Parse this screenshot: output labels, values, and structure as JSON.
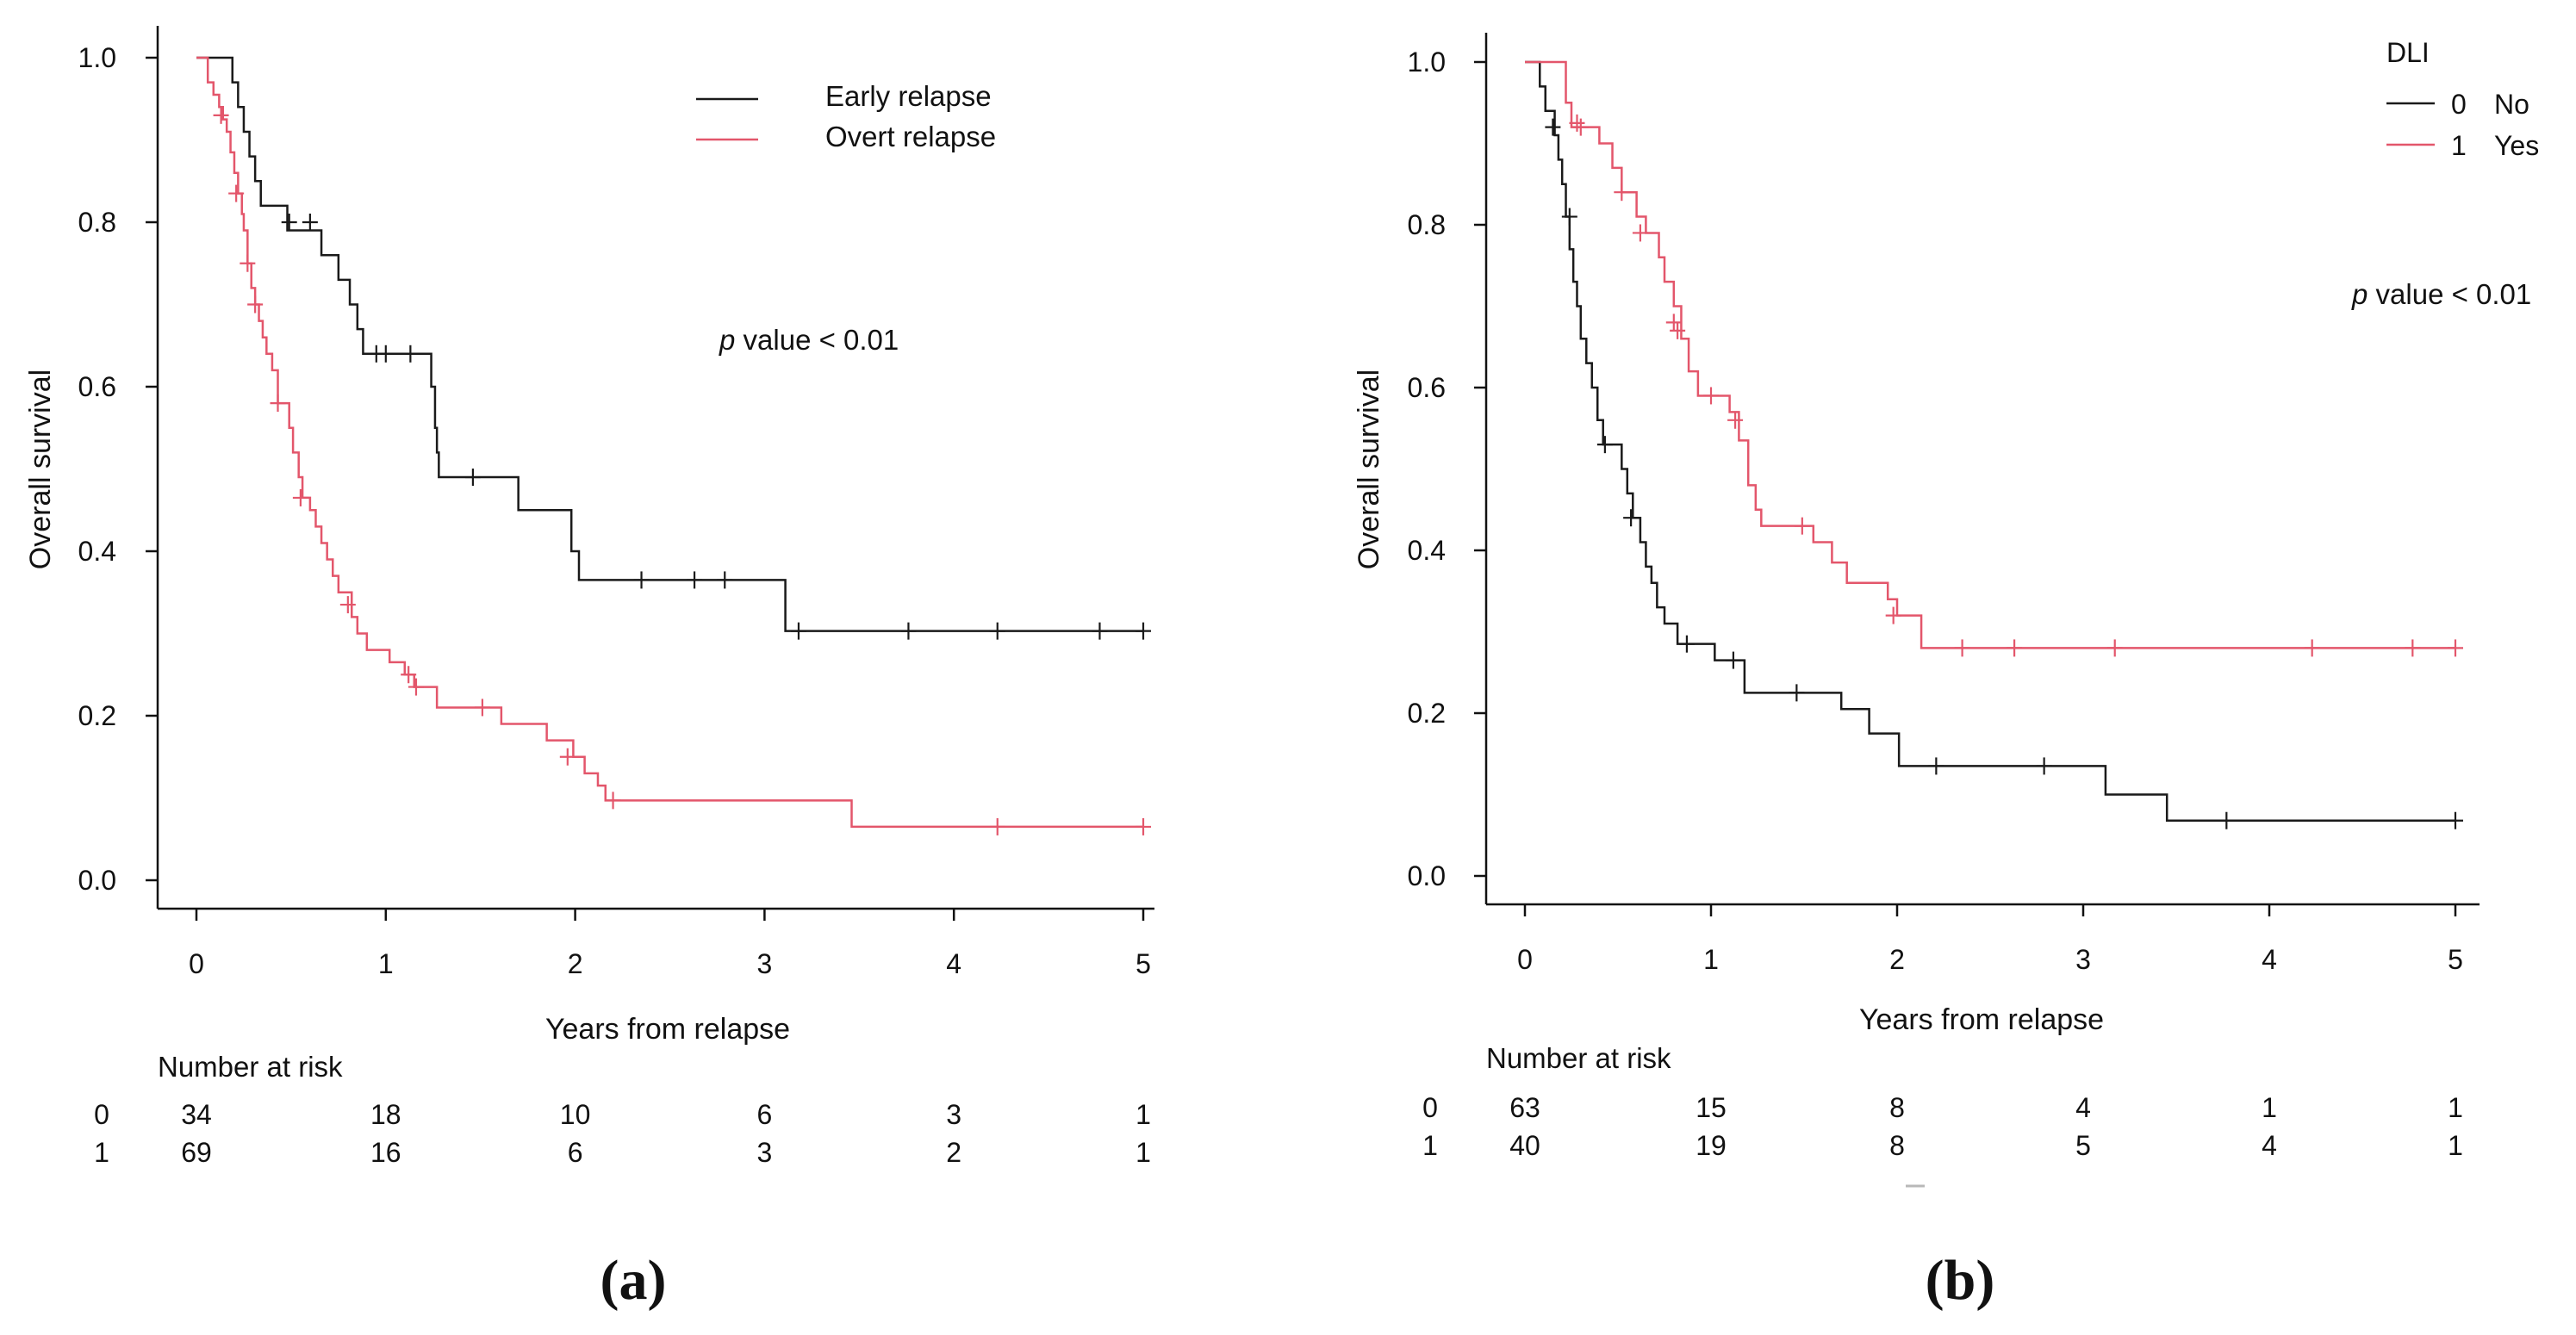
{
  "chart_data": [
    {
      "type": "line",
      "subtype": "kaplan-meier",
      "panel_label": "(a)",
      "xlabel": "Years from relapse",
      "ylabel": "Overall survival",
      "xlim": [
        0,
        5
      ],
      "ylim": [
        0,
        1
      ],
      "x_ticks": [
        "0",
        "1",
        "2",
        "3",
        "4",
        "5"
      ],
      "y_ticks": [
        "0.0",
        "0.2",
        "0.4",
        "0.6",
        "0.8",
        "1.0"
      ],
      "legend_position": "top-right",
      "annotation_italic": "p",
      "annotation_rest": " value < 0.01",
      "series": [
        {
          "name": "Early relapse",
          "color": "#1a1a1a",
          "steps": [
            [
              0,
              1.0
            ],
            [
              0.19,
              0.97
            ],
            [
              0.22,
              0.94
            ],
            [
              0.25,
              0.91
            ],
            [
              0.28,
              0.88
            ],
            [
              0.31,
              0.85
            ],
            [
              0.34,
              0.82
            ],
            [
              0.48,
              0.79
            ],
            [
              0.66,
              0.76
            ],
            [
              0.75,
              0.73
            ],
            [
              0.81,
              0.7
            ],
            [
              0.85,
              0.67
            ],
            [
              0.88,
              0.64
            ],
            [
              1.24,
              0.6
            ],
            [
              1.26,
              0.55
            ],
            [
              1.27,
              0.52
            ],
            [
              1.28,
              0.49
            ],
            [
              1.7,
              0.45
            ],
            [
              1.98,
              0.4
            ],
            [
              2.02,
              0.365
            ],
            [
              3.11,
              0.303
            ],
            [
              5.0,
              0.303
            ]
          ],
          "censors": [
            [
              0.49,
              0.8
            ],
            [
              0.6,
              0.8
            ],
            [
              0.95,
              0.64
            ],
            [
              1.0,
              0.64
            ],
            [
              1.13,
              0.64
            ],
            [
              1.46,
              0.49
            ],
            [
              2.35,
              0.365
            ],
            [
              2.63,
              0.365
            ],
            [
              2.79,
              0.365
            ],
            [
              3.18,
              0.303
            ],
            [
              3.76,
              0.303
            ],
            [
              4.23,
              0.303
            ],
            [
              4.77,
              0.303
            ],
            [
              5.0,
              0.303
            ]
          ]
        },
        {
          "name": "Overt relapse",
          "color": "#e3566b",
          "steps": [
            [
              0,
              1.0
            ],
            [
              0.06,
              0.97
            ],
            [
              0.09,
              0.955
            ],
            [
              0.12,
              0.94
            ],
            [
              0.14,
              0.925
            ],
            [
              0.16,
              0.91
            ],
            [
              0.18,
              0.885
            ],
            [
              0.2,
              0.86
            ],
            [
              0.22,
              0.835
            ],
            [
              0.24,
              0.81
            ],
            [
              0.25,
              0.79
            ],
            [
              0.27,
              0.75
            ],
            [
              0.29,
              0.72
            ],
            [
              0.31,
              0.7
            ],
            [
              0.33,
              0.68
            ],
            [
              0.35,
              0.66
            ],
            [
              0.37,
              0.64
            ],
            [
              0.4,
              0.62
            ],
            [
              0.43,
              0.58
            ],
            [
              0.49,
              0.55
            ],
            [
              0.51,
              0.52
            ],
            [
              0.54,
              0.49
            ],
            [
              0.56,
              0.465
            ],
            [
              0.6,
              0.45
            ],
            [
              0.63,
              0.43
            ],
            [
              0.66,
              0.41
            ],
            [
              0.69,
              0.39
            ],
            [
              0.72,
              0.37
            ],
            [
              0.75,
              0.35
            ],
            [
              0.82,
              0.32
            ],
            [
              0.85,
              0.3
            ],
            [
              0.9,
              0.28
            ],
            [
              1.02,
              0.265
            ],
            [
              1.1,
              0.25
            ],
            [
              1.15,
              0.235
            ],
            [
              1.27,
              0.21
            ],
            [
              1.61,
              0.19
            ],
            [
              1.85,
              0.17
            ],
            [
              1.99,
              0.15
            ],
            [
              2.05,
              0.13
            ],
            [
              2.12,
              0.115
            ],
            [
              2.16,
              0.097
            ],
            [
              3.46,
              0.065
            ],
            [
              5.0,
              0.065
            ]
          ],
          "censors": [
            [
              0.13,
              0.93
            ],
            [
              0.21,
              0.835
            ],
            [
              0.27,
              0.75
            ],
            [
              0.31,
              0.7
            ],
            [
              0.43,
              0.58
            ],
            [
              0.55,
              0.465
            ],
            [
              0.8,
              0.335
            ],
            [
              1.12,
              0.25
            ],
            [
              1.16,
              0.235
            ],
            [
              1.51,
              0.21
            ],
            [
              1.96,
              0.15
            ],
            [
              2.2,
              0.097
            ],
            [
              4.23,
              0.065
            ],
            [
              5.0,
              0.065
            ]
          ]
        }
      ],
      "risk_table": {
        "title": "Number at risk",
        "row_labels": [
          "0",
          "1"
        ],
        "rows": [
          [
            "34",
            "18",
            "10",
            "6",
            "3",
            "1"
          ],
          [
            "69",
            "16",
            "6",
            "3",
            "2",
            "1"
          ]
        ]
      }
    },
    {
      "type": "line",
      "subtype": "kaplan-meier",
      "panel_label": "(b)",
      "xlabel": "Years from relapse",
      "ylabel": "Overall survival",
      "xlim": [
        0,
        5
      ],
      "ylim": [
        0,
        1
      ],
      "x_ticks": [
        "0",
        "1",
        "2",
        "3",
        "4",
        "5"
      ],
      "y_ticks": [
        "0.0",
        "0.2",
        "0.4",
        "0.6",
        "0.8",
        "1.0"
      ],
      "legend_title": "DLI",
      "legend_position": "top-right",
      "annotation_italic": "p",
      "annotation_rest": " value < 0.01",
      "series": [
        {
          "name": "No",
          "legend_code": "0",
          "color": "#1a1a1a",
          "steps": [
            [
              0,
              1.0
            ],
            [
              0.08,
              0.97
            ],
            [
              0.11,
              0.94
            ],
            [
              0.16,
              0.91
            ],
            [
              0.18,
              0.88
            ],
            [
              0.2,
              0.85
            ],
            [
              0.22,
              0.81
            ],
            [
              0.24,
              0.77
            ],
            [
              0.26,
              0.73
            ],
            [
              0.28,
              0.7
            ],
            [
              0.3,
              0.66
            ],
            [
              0.33,
              0.63
            ],
            [
              0.36,
              0.6
            ],
            [
              0.39,
              0.56
            ],
            [
              0.42,
              0.53
            ],
            [
              0.52,
              0.5
            ],
            [
              0.55,
              0.47
            ],
            [
              0.58,
              0.44
            ],
            [
              0.62,
              0.41
            ],
            [
              0.65,
              0.38
            ],
            [
              0.68,
              0.36
            ],
            [
              0.71,
              0.33
            ],
            [
              0.75,
              0.31
            ],
            [
              0.82,
              0.285
            ],
            [
              1.02,
              0.265
            ],
            [
              1.18,
              0.225
            ],
            [
              1.7,
              0.205
            ],
            [
              1.85,
              0.175
            ],
            [
              2.01,
              0.135
            ],
            [
              3.12,
              0.1
            ],
            [
              3.45,
              0.068
            ],
            [
              5.0,
              0.068
            ]
          ],
          "censors": [
            [
              0.15,
              0.92
            ],
            [
              0.24,
              0.81
            ],
            [
              0.43,
              0.53
            ],
            [
              0.57,
              0.44
            ],
            [
              0.87,
              0.285
            ],
            [
              1.12,
              0.265
            ],
            [
              1.46,
              0.225
            ],
            [
              2.21,
              0.135
            ],
            [
              2.79,
              0.135
            ],
            [
              3.77,
              0.068
            ],
            [
              5.0,
              0.068
            ]
          ]
        },
        {
          "name": "Yes",
          "legend_code": "1",
          "color": "#e3566b",
          "steps": [
            [
              0,
              1.0
            ],
            [
              0.22,
              0.95
            ],
            [
              0.25,
              0.92
            ],
            [
              0.4,
              0.9
            ],
            [
              0.47,
              0.87
            ],
            [
              0.52,
              0.84
            ],
            [
              0.6,
              0.81
            ],
            [
              0.65,
              0.79
            ],
            [
              0.72,
              0.76
            ],
            [
              0.75,
              0.73
            ],
            [
              0.8,
              0.7
            ],
            [
              0.84,
              0.66
            ],
            [
              0.88,
              0.62
            ],
            [
              0.93,
              0.59
            ],
            [
              1.1,
              0.57
            ],
            [
              1.15,
              0.535
            ],
            [
              1.2,
              0.48
            ],
            [
              1.24,
              0.45
            ],
            [
              1.27,
              0.43
            ],
            [
              1.55,
              0.41
            ],
            [
              1.65,
              0.385
            ],
            [
              1.73,
              0.36
            ],
            [
              1.95,
              0.34
            ],
            [
              2.0,
              0.32
            ],
            [
              2.13,
              0.28
            ],
            [
              5.0,
              0.28
            ]
          ],
          "censors": [
            [
              0.28,
              0.925
            ],
            [
              0.3,
              0.92
            ],
            [
              0.52,
              0.84
            ],
            [
              0.62,
              0.79
            ],
            [
              0.8,
              0.68
            ],
            [
              0.82,
              0.67
            ],
            [
              1.0,
              0.59
            ],
            [
              1.13,
              0.56
            ],
            [
              1.49,
              0.43
            ],
            [
              1.98,
              0.32
            ],
            [
              2.35,
              0.28
            ],
            [
              2.63,
              0.28
            ],
            [
              3.17,
              0.28
            ],
            [
              4.23,
              0.28
            ],
            [
              4.77,
              0.28
            ],
            [
              5.0,
              0.28
            ]
          ]
        }
      ],
      "risk_table": {
        "title": "Number at risk",
        "row_labels": [
          "0",
          "1"
        ],
        "rows": [
          [
            "63",
            "15",
            "8",
            "4",
            "1",
            "1"
          ],
          [
            "40",
            "19",
            "8",
            "5",
            "4",
            "1"
          ]
        ]
      }
    }
  ]
}
